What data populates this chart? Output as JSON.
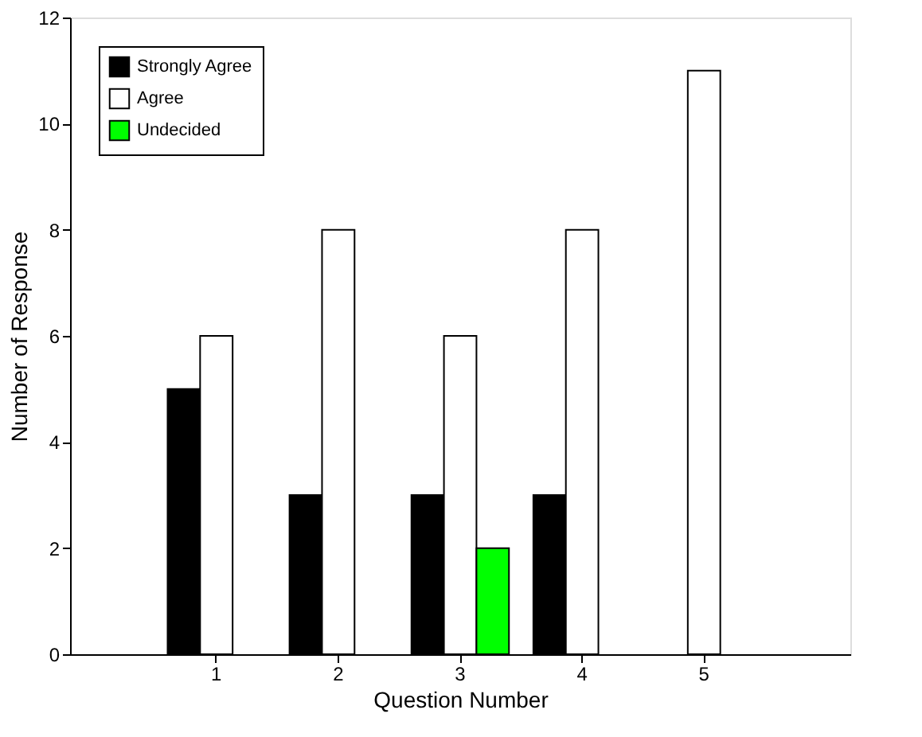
{
  "chart_data": {
    "type": "bar",
    "xlabel": "Question Number",
    "ylabel": "Number of Response",
    "categories": [
      "1",
      "2",
      "3",
      "4",
      "5"
    ],
    "series": [
      {
        "name": "Strongly Agree",
        "color": "#000000",
        "values": [
          5,
          3,
          3,
          3,
          null
        ]
      },
      {
        "name": "Agree",
        "color": "#ffffff",
        "values": [
          6,
          8,
          6,
          8,
          11
        ]
      },
      {
        "name": "Undecided",
        "color": "#00ff00",
        "values": [
          null,
          null,
          2,
          null,
          null
        ]
      }
    ],
    "ylim": [
      0,
      12
    ],
    "yticks": [
      0,
      2,
      4,
      6,
      8,
      10,
      12
    ],
    "grid": false,
    "legend": "top left"
  }
}
